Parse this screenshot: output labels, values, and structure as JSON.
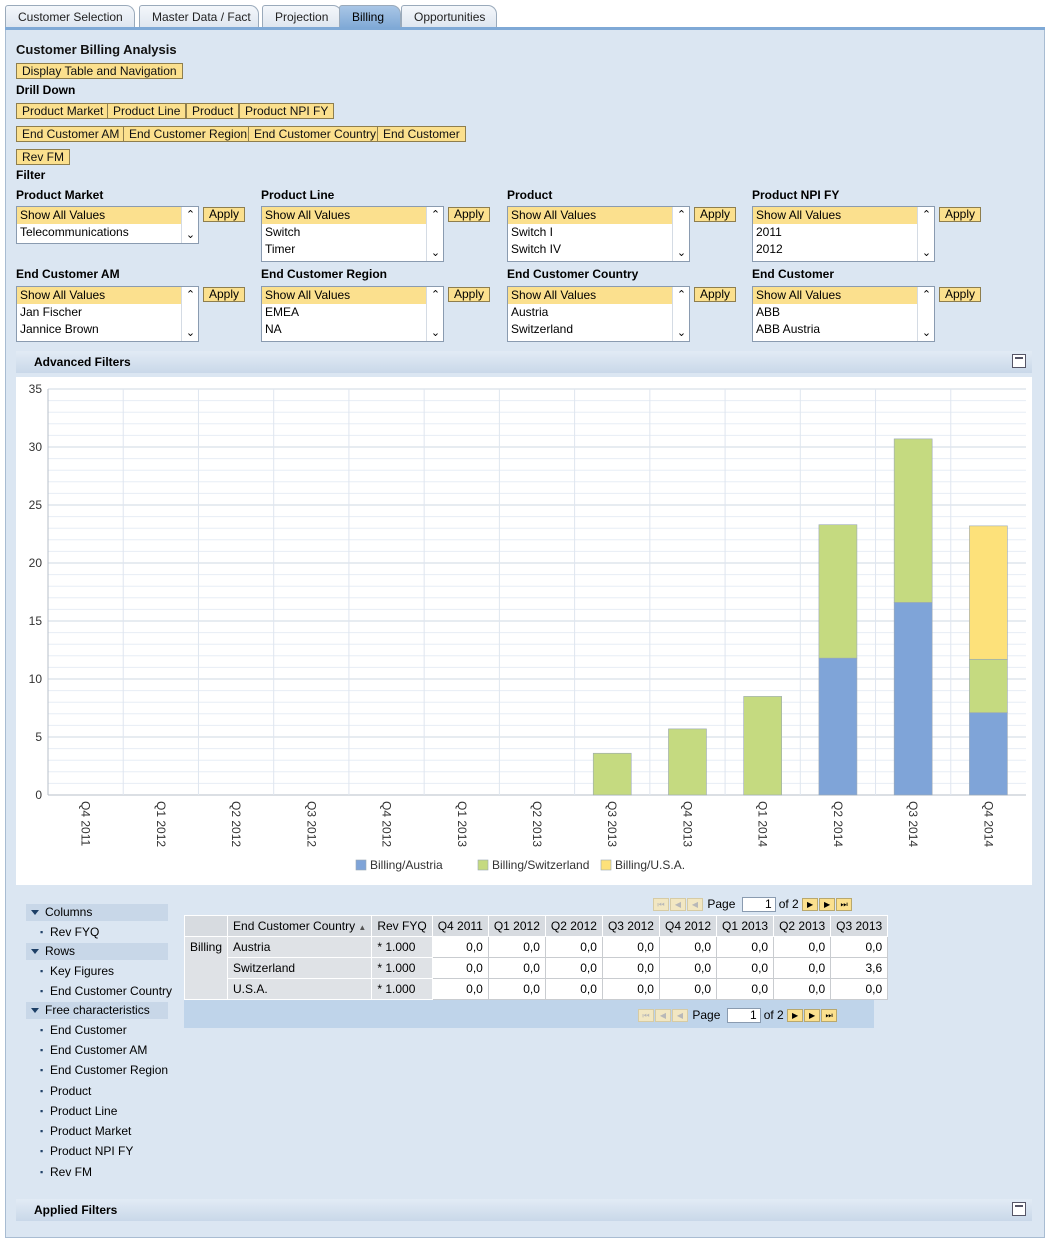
{
  "tabs": [
    "Customer Selection",
    "Master Data / Fact",
    "Projection",
    "Billing",
    "Opportunities"
  ],
  "active_tab": "Billing",
  "page_title": "Customer Billing Analysis",
  "display_button": "Display Table and Navigation",
  "drill_down": {
    "label": "Drill Down",
    "buttons": [
      "Product Market",
      "Product Line",
      "Product",
      "Product NPI FY",
      "End Customer AM",
      "End Customer Region",
      "End Customer Country",
      "End Customer",
      "Rev FM"
    ]
  },
  "filter": {
    "label": "Filter",
    "apply_label": "Apply",
    "boxes": [
      {
        "label": "Product Market",
        "options": [
          "Show All Values",
          "Telecommunications"
        ]
      },
      {
        "label": "Product Line",
        "options": [
          "Show All Values",
          "Switch",
          "Timer"
        ]
      },
      {
        "label": "Product",
        "options": [
          "Show All Values",
          "Switch I",
          "Switch IV"
        ]
      },
      {
        "label": "Product NPI FY",
        "options": [
          "Show All Values",
          "2011",
          "2012"
        ]
      },
      {
        "label": "End Customer AM",
        "options": [
          "Show All Values",
          "Jan Fischer",
          "Jannice Brown"
        ]
      },
      {
        "label": "End Customer Region",
        "options": [
          "Show All Values",
          "EMEA",
          "NA"
        ]
      },
      {
        "label": "End Customer Country",
        "options": [
          "Show All Values",
          "Austria",
          "Switzerland"
        ]
      },
      {
        "label": "End Customer",
        "options": [
          "Show All Values",
          "ABB",
          "ABB Austria"
        ]
      }
    ]
  },
  "advanced_filters_label": "Advanced Filters",
  "applied_filters_label": "Applied Filters",
  "chart_data": {
    "type": "bar",
    "stacked": true,
    "categories": [
      "Q4 2011",
      "Q1 2012",
      "Q2 2012",
      "Q3 2012",
      "Q4 2012",
      "Q1 2013",
      "Q2 2013",
      "Q3 2013",
      "Q4 2013",
      "Q1 2014",
      "Q2 2014",
      "Q3 2014",
      "Q4 2014"
    ],
    "series": [
      {
        "name": "Billing/Austria",
        "color": "#7fa4d8",
        "values": [
          0,
          0,
          0,
          0,
          0,
          0,
          0,
          0,
          0,
          0,
          11.8,
          16.6,
          7.1
        ]
      },
      {
        "name": "Billing/Switzerland",
        "color": "#c5da80",
        "values": [
          0,
          0,
          0,
          0,
          0,
          0,
          0,
          3.6,
          5.7,
          8.5,
          11.5,
          14.1,
          4.6
        ]
      },
      {
        "name": "Billing/U.S.A.",
        "color": "#fde17a",
        "values": [
          0,
          0,
          0,
          0,
          0,
          0,
          0,
          0,
          0,
          0,
          0,
          0,
          11.5
        ]
      }
    ],
    "ylim": [
      0,
      35
    ],
    "yticks": [
      0,
      5,
      10,
      15,
      20,
      25,
      30,
      35
    ],
    "grid": true,
    "legend": "bottom"
  },
  "navigation": {
    "columns_label": "Columns",
    "columns": [
      "Rev FYQ"
    ],
    "rows_label": "Rows",
    "rows": [
      "Key Figures",
      "End Customer Country"
    ],
    "free_label": "Free characteristics",
    "free": [
      "End Customer",
      "End Customer AM",
      "End Customer Region",
      "Product",
      "Product Line",
      "Product Market",
      "Product NPI FY",
      "Rev FM"
    ]
  },
  "pager": {
    "label": "Page",
    "value": "1",
    "of": "of 2"
  },
  "table": {
    "headers": [
      "End Customer Country",
      "Rev FYQ",
      "Q4 2011",
      "Q1 2012",
      "Q2 2012",
      "Q3 2012",
      "Q4 2012",
      "Q1 2013",
      "Q2 2013",
      "Q3 2013"
    ],
    "row_group": "Billing",
    "rows": [
      {
        "country": "Austria",
        "scale": "* 1.000",
        "values": [
          "0,0",
          "0,0",
          "0,0",
          "0,0",
          "0,0",
          "0,0",
          "0,0",
          "0,0"
        ]
      },
      {
        "country": "Switzerland",
        "scale": "* 1.000",
        "values": [
          "0,0",
          "0,0",
          "0,0",
          "0,0",
          "0,0",
          "0,0",
          "0,0",
          "3,6"
        ]
      },
      {
        "country": "U.S.A.",
        "scale": "* 1.000",
        "values": [
          "0,0",
          "0,0",
          "0,0",
          "0,0",
          "0,0",
          "0,0",
          "0,0",
          "0,0"
        ]
      }
    ]
  }
}
